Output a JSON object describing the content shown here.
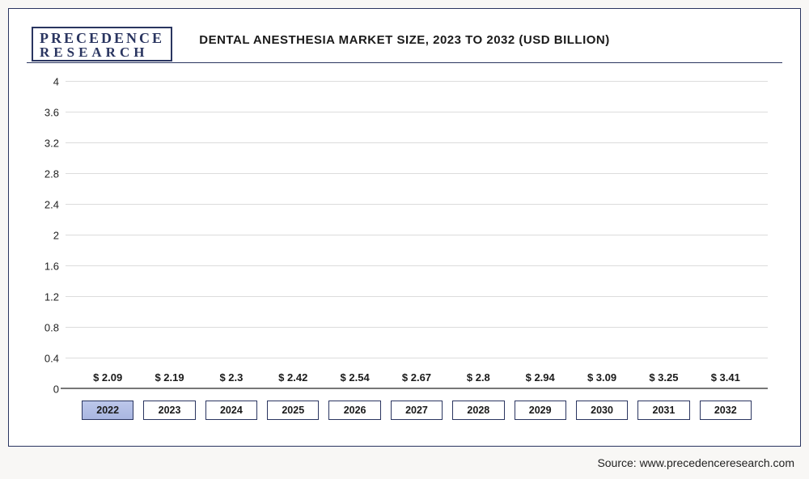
{
  "logo": {
    "line1": "PRECEDENCE",
    "line2": "RESEARCH"
  },
  "chart": {
    "type": "bar",
    "title": "DENTAL ANESTHESIA MARKET SIZE, 2023 TO 2032 (USD BILLION)",
    "ylim": [
      0,
      4
    ],
    "ytick_step": 0.4,
    "yticks": [
      "0",
      "0.4",
      "0.8",
      "1.2",
      "1.6",
      "2",
      "2.4",
      "2.8",
      "3.2",
      "3.6",
      "4"
    ],
    "grid_color": "#dcdcdc",
    "background_color": "#ffffff",
    "value_prefix": "$ ",
    "value_fontsize": 13,
    "title_fontsize": 15,
    "categories": [
      "2022",
      "2023",
      "2024",
      "2025",
      "2026",
      "2027",
      "2028",
      "2029",
      "2030",
      "2031",
      "2032"
    ],
    "values": [
      2.09,
      2.19,
      2.3,
      2.42,
      2.54,
      2.67,
      2.8,
      2.94,
      3.09,
      3.25,
      3.41
    ],
    "value_labels": [
      "2.09",
      "2.19",
      "2.3",
      "2.42",
      "2.54",
      "2.67",
      "2.8",
      "2.94",
      "3.09",
      "3.25",
      "3.41"
    ],
    "bar_colors": [
      "#b4c0e4",
      "#5a6aa4",
      "#4a5a9a",
      "#3f4f90",
      "#364787",
      "#2e3f7e",
      "#233268",
      "#1d2b5c",
      "#1a2651",
      "#19244d",
      "#172148"
    ],
    "bar_width": 0.72
  },
  "source": "Source: www.precedenceresearch.com"
}
